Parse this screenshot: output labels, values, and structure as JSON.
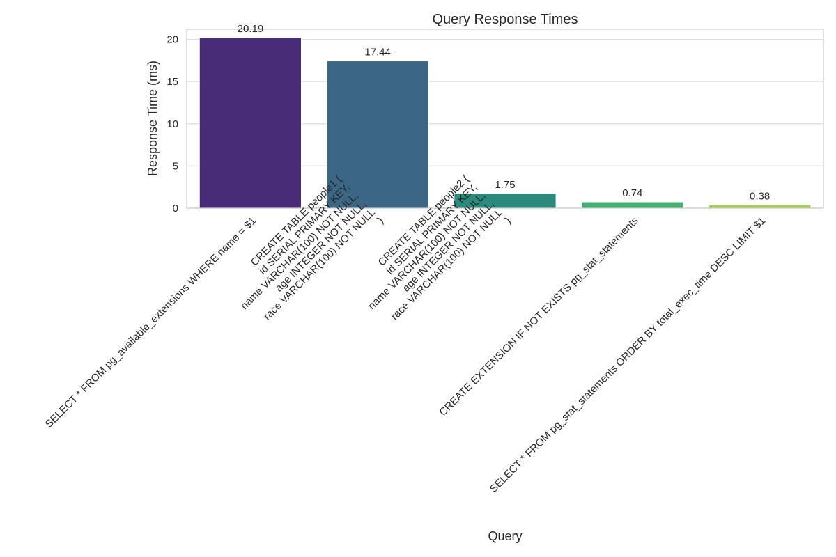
{
  "chart_data": {
    "type": "bar",
    "title": "Query Response Times",
    "xlabel": "Query",
    "ylabel": "Response Time (ms)",
    "ylim": [
      0,
      21.2
    ],
    "yticks": [
      0,
      5,
      10,
      15,
      20
    ],
    "grid": true,
    "categories": [
      "SELECT * FROM pg_available_extensions WHERE name = $1",
      "CREATE TABLE people1 (\n    id SERIAL PRIMARY KEY,\n    name VARCHAR(100) NOT NULL,\n    age INTEGER NOT NULL,\n    race VARCHAR(100) NOT NULL\n)",
      "CREATE TABLE people2 (\n    id SERIAL PRIMARY KEY,\n    name VARCHAR(100) NOT NULL,\n    age INTEGER NOT NULL,\n    race VARCHAR(100) NOT NULL\n)",
      "CREATE EXTENSION IF NOT EXISTS pg_stat_statements",
      "SELECT * FROM pg_stat_statements ORDER BY total_exec_time DESC LIMIT $1"
    ],
    "values": [
      20.19,
      17.44,
      1.75,
      0.74,
      0.38
    ],
    "value_labels": [
      "20.19",
      "17.44",
      "1.75",
      "0.74",
      "0.38"
    ],
    "colors": [
      "#482b77",
      "#3b6684",
      "#2b8a7b",
      "#46ad71",
      "#a3cf49"
    ]
  }
}
